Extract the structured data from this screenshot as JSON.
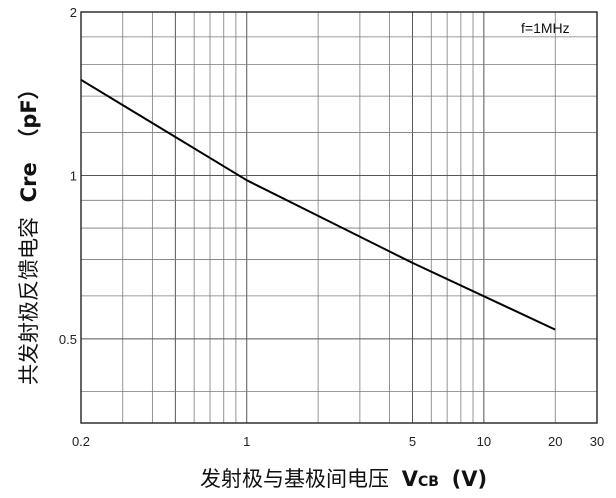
{
  "chart_data": {
    "type": "line",
    "title": "",
    "annotation": "f=1MHz",
    "xlabel": {
      "text": "发射极与基极间电压",
      "symbol": "V",
      "subscript": "CB",
      "unit": "(V)"
    },
    "ylabel": {
      "text": "共发射极反馈电容",
      "symbol": "Cre",
      "unit": "（pF）"
    },
    "x_scale": "log",
    "y_scale": "log",
    "xlim": [
      0.2,
      30
    ],
    "ylim": [
      0.35,
      2
    ],
    "x_ticks": [
      {
        "v": 0.2,
        "label": "0.2"
      },
      {
        "v": 1,
        "label": "1"
      },
      {
        "v": 5,
        "label": "5"
      },
      {
        "v": 10,
        "label": "10"
      },
      {
        "v": 20,
        "label": "20"
      },
      {
        "v": 30,
        "label": "30"
      }
    ],
    "y_ticks": [
      {
        "v": 0.5,
        "label": "0.5"
      },
      {
        "v": 1,
        "label": "1"
      },
      {
        "v": 2,
        "label": "2"
      }
    ],
    "grid": true,
    "series": [
      {
        "x": [
          0.2,
          1,
          5,
          20
        ],
        "y": [
          1.5,
          0.98,
          0.69,
          0.52
        ]
      }
    ]
  }
}
